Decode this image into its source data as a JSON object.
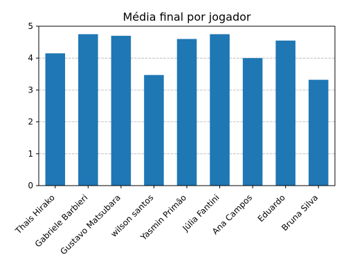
{
  "chart_data": {
    "type": "bar",
    "title": "Média final por jogador",
    "xlabel": "",
    "ylabel": "",
    "categories": [
      "Thais Hirako",
      "Gabriele Barbieri",
      "Gustavo Matsubara",
      "wilson santos",
      "Yasmin Primão",
      "Júlia Fantini",
      "Ana Campos",
      "Eduardo",
      "Bruna Silva"
    ],
    "values": [
      4.15,
      4.75,
      4.7,
      3.47,
      4.6,
      4.75,
      4.0,
      4.55,
      3.32
    ],
    "ylim": [
      0,
      5
    ],
    "yticks": [
      0,
      1,
      2,
      3,
      4,
      5
    ],
    "grid": "y-axis dashed",
    "bar_color": "#1f77b4"
  }
}
